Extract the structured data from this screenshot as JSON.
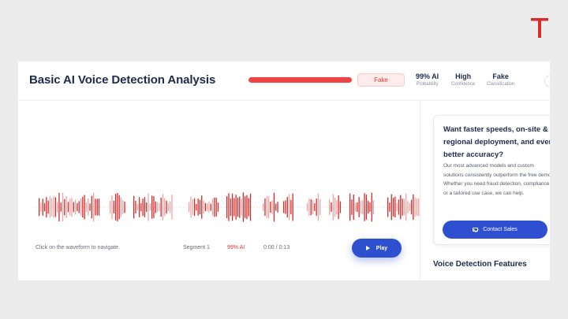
{
  "brand": {
    "logo_icon": "t-logo-icon",
    "logo_color": "#d92b2b"
  },
  "header": {
    "title": "Basic AI Voice Detection Analysis",
    "ai_probability": 0.99,
    "verdict_label": "Fake",
    "stats": [
      {
        "value": "99% AI",
        "label": "Probability"
      },
      {
        "value": "High",
        "label": "Confidence"
      },
      {
        "value": "Fake",
        "label": "Classification"
      }
    ]
  },
  "player": {
    "hint": "Click on the waveform to navigate.",
    "segment": "Segment 1",
    "segment_ai": "99% AI",
    "time": "0:00 / 0:13",
    "play_label": "Play"
  },
  "promo": {
    "title": "Want faster speeds, on-site & regional deployment, and even better accuracy?",
    "body": "Our most advanced models and custom solutions consistently outperform the free demo. Whether you need fraud detection, compliance, or a tailored use case, we can help.",
    "button_label": "Contact Sales"
  },
  "features_title": "Voice Detection Features",
  "colors": {
    "accent": "#2f4fd1",
    "danger": "#e53935",
    "wave_dark": "#d42a2a",
    "wave_light": "#f2a3a3"
  }
}
